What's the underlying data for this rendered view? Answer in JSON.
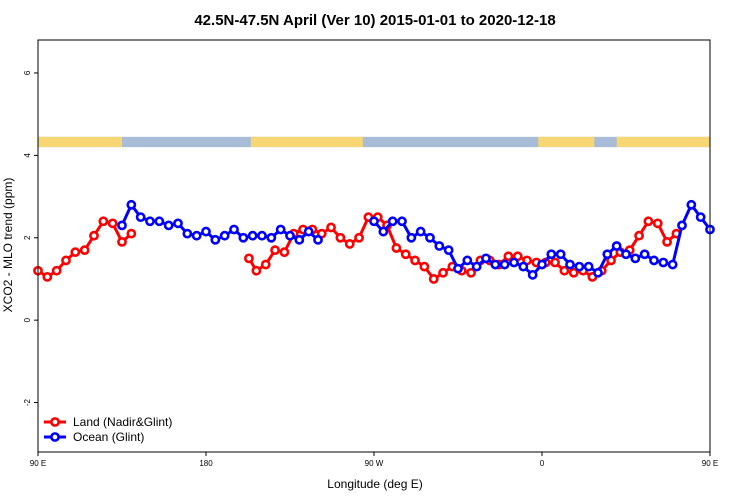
{
  "chart_data": {
    "type": "line",
    "title": "42.5N-47.5N April (Ver 10)   2015-01-01 to 2020-12-18",
    "xlabel": "Longitude (deg E)",
    "ylabel": "XCO2 - MLO trend (ppm)",
    "xlim": [
      90,
      450
    ],
    "ylim": [
      -3.2,
      6.8
    ],
    "x_ticks": [
      {
        "value": 90,
        "label": "90 E"
      },
      {
        "value": 180,
        "label": "180"
      },
      {
        "value": 270,
        "label": "90 W"
      },
      {
        "value": 360,
        "label": "0"
      },
      {
        "value": 450,
        "label": "90 E"
      },
      {
        "value": 540,
        "label": "180"
      }
    ],
    "y_ticks": [
      {
        "value": -2,
        "label": "-2"
      },
      {
        "value": 0,
        "label": "0"
      },
      {
        "value": 2,
        "label": "2"
      },
      {
        "value": 4,
        "label": "4"
      },
      {
        "value": 6,
        "label": "6"
      }
    ],
    "land_ocean_strip": {
      "y_range": [
        4.2,
        4.45
      ],
      "land_color": "#F7D774",
      "ocean_color": "#A8BCD8",
      "land_intervals": [
        [
          90,
          135
        ],
        [
          204,
          264
        ],
        [
          358,
          388
        ],
        [
          400,
          450
        ]
      ]
    },
    "legend": {
      "position": "bottom-left"
    },
    "series": [
      {
        "name": "Land (Nadir&Glint)",
        "color": "#FF0000",
        "segments": [
          [
            [
              90,
              1.2
            ],
            [
              95,
              1.05
            ],
            [
              100,
              1.2
            ],
            [
              105,
              1.45
            ],
            [
              110,
              1.65
            ],
            [
              115,
              1.7
            ],
            [
              120,
              2.05
            ],
            [
              125,
              2.4
            ],
            [
              130,
              2.35
            ],
            [
              135,
              1.9
            ],
            [
              140,
              2.1
            ]
          ],
          [
            [
              203,
              1.5
            ],
            [
              207,
              1.2
            ],
            [
              212,
              1.35
            ],
            [
              217,
              1.7
            ],
            [
              222,
              1.65
            ],
            [
              227,
              2.1
            ],
            [
              232,
              2.2
            ],
            [
              237,
              2.2
            ],
            [
              242,
              2.1
            ],
            [
              247,
              2.25
            ],
            [
              252,
              2.0
            ],
            [
              257,
              1.85
            ],
            [
              262,
              2.0
            ],
            [
              267,
              2.5
            ],
            [
              272,
              2.5
            ],
            [
              277,
              2.3
            ],
            [
              282,
              1.75
            ],
            [
              287,
              1.6
            ],
            [
              292,
              1.45
            ],
            [
              297,
              1.3
            ],
            [
              302,
              1.0
            ],
            [
              307,
              1.15
            ],
            [
              312,
              1.3
            ],
            [
              317,
              1.2
            ],
            [
              322,
              1.15
            ],
            [
              327,
              1.45
            ],
            [
              332,
              1.45
            ],
            [
              337,
              1.35
            ],
            [
              342,
              1.55
            ],
            [
              347,
              1.55
            ],
            [
              352,
              1.45
            ],
            [
              357,
              1.4
            ],
            [
              362,
              1.4
            ],
            [
              367,
              1.4
            ],
            [
              372,
              1.2
            ],
            [
              377,
              1.15
            ],
            [
              382,
              1.2
            ],
            [
              387,
              1.05
            ],
            [
              392,
              1.2
            ],
            [
              397,
              1.45
            ],
            [
              402,
              1.65
            ],
            [
              407,
              1.7
            ],
            [
              412,
              2.05
            ],
            [
              417,
              2.4
            ],
            [
              422,
              2.35
            ],
            [
              427,
              1.9
            ],
            [
              432,
              2.1
            ]
          ]
        ]
      },
      {
        "name": "Ocean (Glint)",
        "color": "#0000FF",
        "segments": [
          [
            [
              135,
              2.3
            ],
            [
              140,
              2.8
            ],
            [
              145,
              2.5
            ],
            [
              150,
              2.4
            ],
            [
              155,
              2.4
            ],
            [
              160,
              2.3
            ],
            [
              165,
              2.35
            ],
            [
              170,
              2.1
            ],
            [
              175,
              2.05
            ],
            [
              180,
              2.15
            ],
            [
              185,
              1.95
            ],
            [
              190,
              2.05
            ],
            [
              195,
              2.2
            ],
            [
              200,
              2.0
            ],
            [
              205,
              2.05
            ],
            [
              210,
              2.05
            ],
            [
              215,
              2.0
            ],
            [
              220,
              2.2
            ],
            [
              225,
              2.05
            ],
            [
              230,
              1.95
            ],
            [
              235,
              2.15
            ],
            [
              240,
              1.95
            ]
          ],
          [
            [
              270,
              2.4
            ],
            [
              275,
              2.15
            ],
            [
              280,
              2.4
            ],
            [
              285,
              2.4
            ],
            [
              290,
              2.0
            ],
            [
              295,
              2.15
            ],
            [
              300,
              2.0
            ],
            [
              305,
              1.8
            ],
            [
              310,
              1.7
            ],
            [
              315,
              1.25
            ],
            [
              320,
              1.45
            ],
            [
              325,
              1.3
            ],
            [
              330,
              1.5
            ],
            [
              335,
              1.35
            ],
            [
              340,
              1.35
            ],
            [
              345,
              1.4
            ],
            [
              350,
              1.3
            ],
            [
              355,
              1.1
            ],
            [
              360,
              1.35
            ],
            [
              365,
              1.6
            ],
            [
              370,
              1.6
            ],
            [
              375,
              1.35
            ],
            [
              380,
              1.3
            ],
            [
              385,
              1.3
            ],
            [
              390,
              1.15
            ],
            [
              395,
              1.6
            ],
            [
              400,
              1.8
            ],
            [
              405,
              1.6
            ],
            [
              410,
              1.5
            ],
            [
              415,
              1.6
            ],
            [
              420,
              1.45
            ],
            [
              425,
              1.4
            ],
            [
              430,
              1.35
            ],
            [
              435,
              2.3
            ],
            [
              440,
              2.8
            ],
            [
              445,
              2.5
            ],
            [
              450,
              2.2
            ]
          ]
        ]
      }
    ]
  }
}
